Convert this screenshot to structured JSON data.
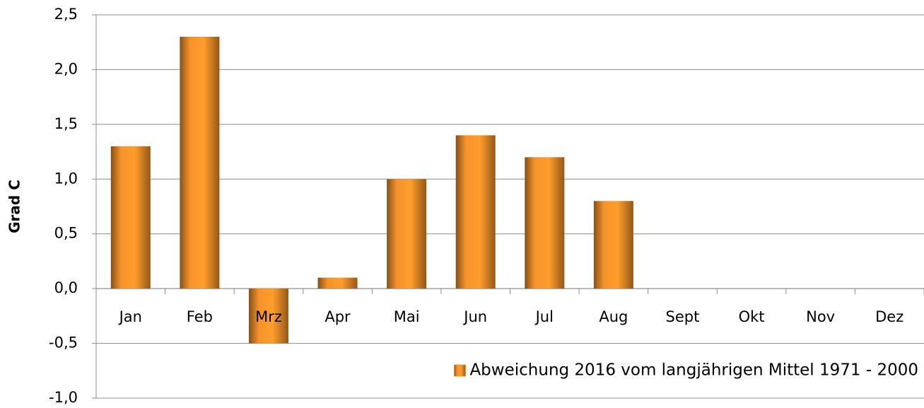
{
  "chart_data": {
    "type": "bar",
    "y_label": "Grad C",
    "categories": [
      "Jan",
      "Feb",
      "Mrz",
      "Apr",
      "Mai",
      "Jun",
      "Jul",
      "Aug",
      "Sept",
      "Okt",
      "Nov",
      "Dez"
    ],
    "series": [
      {
        "name": "Abweichung 2016 vom langjährigen Mittel 1971 - 2000",
        "color": "#f5922a",
        "values": [
          1.3,
          2.3,
          -0.5,
          0.1,
          1.0,
          1.4,
          1.2,
          0.8,
          null,
          null,
          null,
          null
        ]
      }
    ],
    "ylim": [
      -1.0,
      2.5
    ],
    "yticks": [
      {
        "value": -1.0,
        "label": "-1,0"
      },
      {
        "value": -0.5,
        "label": "-0,5"
      },
      {
        "value": 0,
        "label": "0,0"
      },
      {
        "value": 0.5,
        "label": "0,5"
      },
      {
        "value": 1.0,
        "label": "1,0"
      },
      {
        "value": 1.5,
        "label": "1,5"
      },
      {
        "value": 2.0,
        "label": "2,0"
      },
      {
        "value": 2.5,
        "label": "2,5"
      }
    ],
    "grid": true,
    "legend": "bottom-right"
  }
}
